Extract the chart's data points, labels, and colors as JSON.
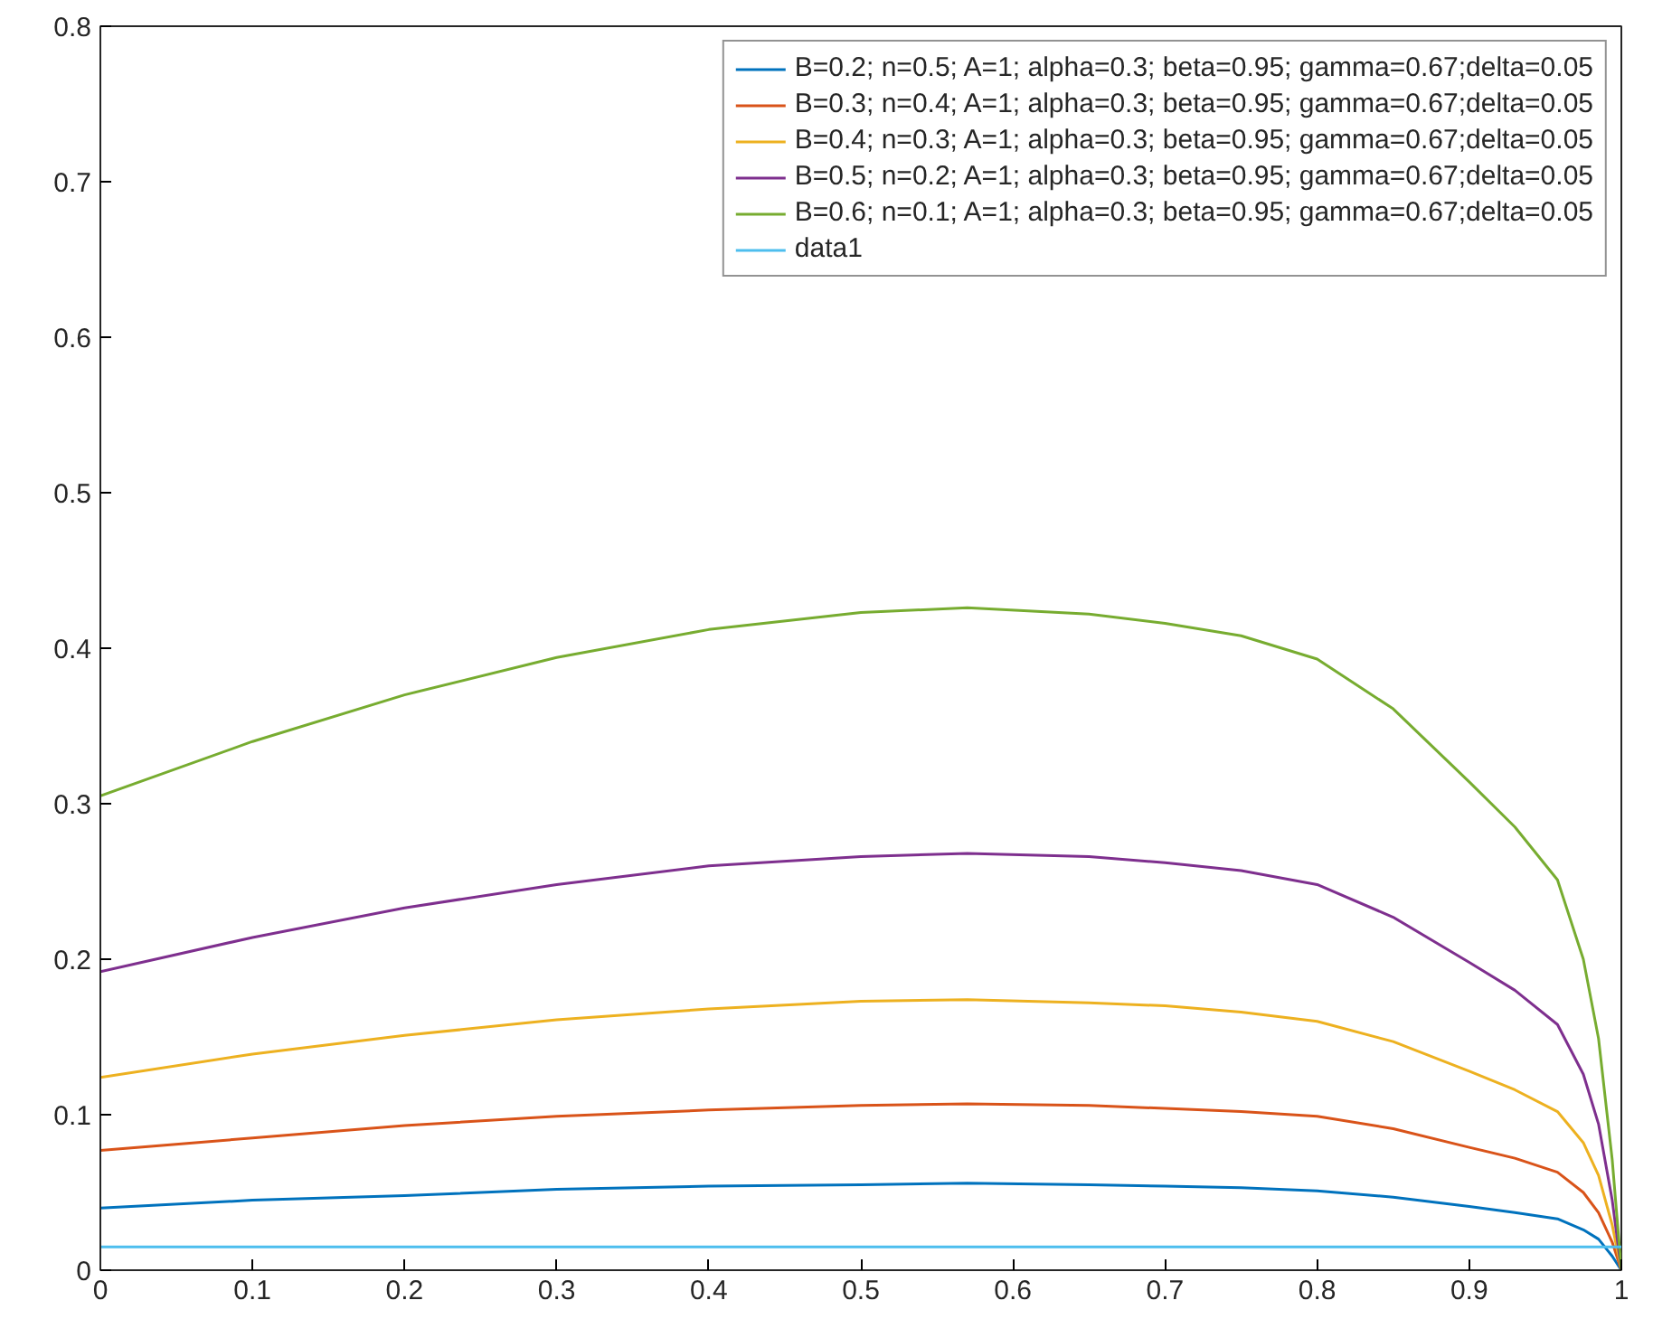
{
  "chart_data": {
    "type": "line",
    "x": [
      0,
      0.1,
      0.2,
      0.3,
      0.4,
      0.5,
      0.57,
      0.65,
      0.7,
      0.75,
      0.8,
      0.85,
      0.9,
      0.93,
      0.958,
      0.975,
      0.985,
      0.994,
      1
    ],
    "series": [
      {
        "name": "B=0.2; n=0.5; A=1; alpha=0.3; beta=0.95; gamma=0.67;delta=0.05",
        "color": "#0072bd",
        "values": [
          0.04,
          0.045,
          0.048,
          0.052,
          0.054,
          0.055,
          0.056,
          0.055,
          0.054,
          0.053,
          0.051,
          0.047,
          0.041,
          0.037,
          0.033,
          0.026,
          0.02,
          0.009,
          0
        ]
      },
      {
        "name": "B=0.3; n=0.4; A=1; alpha=0.3; beta=0.95; gamma=0.67;delta=0.05",
        "color": "#d95319",
        "values": [
          0.077,
          0.085,
          0.093,
          0.099,
          0.103,
          0.106,
          0.107,
          0.106,
          0.104,
          0.102,
          0.099,
          0.091,
          0.079,
          0.072,
          0.063,
          0.05,
          0.037,
          0.018,
          0
        ]
      },
      {
        "name": "B=0.4; n=0.3; A=1; alpha=0.3; beta=0.95; gamma=0.67;delta=0.05",
        "color": "#edb120",
        "values": [
          0.124,
          0.139,
          0.151,
          0.161,
          0.168,
          0.173,
          0.174,
          0.172,
          0.17,
          0.166,
          0.16,
          0.147,
          0.128,
          0.116,
          0.102,
          0.082,
          0.061,
          0.029,
          0
        ]
      },
      {
        "name": "B=0.5; n=0.2; A=1; alpha=0.3; beta=0.95; gamma=0.67;delta=0.05",
        "color": "#7e2f8e",
        "values": [
          0.192,
          0.214,
          0.233,
          0.248,
          0.26,
          0.266,
          0.268,
          0.266,
          0.262,
          0.257,
          0.248,
          0.227,
          0.198,
          0.18,
          0.158,
          0.126,
          0.094,
          0.045,
          0
        ]
      },
      {
        "name": "B=0.6; n=0.1; A=1; alpha=0.3; beta=0.95; gamma=0.67;delta=0.05",
        "color": "#77ac30",
        "values": [
          0.305,
          0.34,
          0.37,
          0.394,
          0.412,
          0.423,
          0.426,
          0.422,
          0.416,
          0.408,
          0.393,
          0.361,
          0.314,
          0.285,
          0.251,
          0.2,
          0.149,
          0.071,
          0
        ]
      },
      {
        "name": "data1",
        "color": "#4dbeee",
        "x": [
          0,
          1
        ],
        "values": [
          0.015,
          0.015
        ]
      }
    ],
    "xlim": [
      0,
      1
    ],
    "ylim": [
      0,
      0.8
    ],
    "xticks": [
      0,
      0.1,
      0.2,
      0.3,
      0.4,
      0.5,
      0.6,
      0.7,
      0.8,
      0.9,
      1
    ],
    "yticks": [
      0,
      0.1,
      0.2,
      0.3,
      0.4,
      0.5,
      0.6,
      0.7,
      0.8
    ],
    "grid": false,
    "legend": "top right",
    "line_style": "solid"
  }
}
